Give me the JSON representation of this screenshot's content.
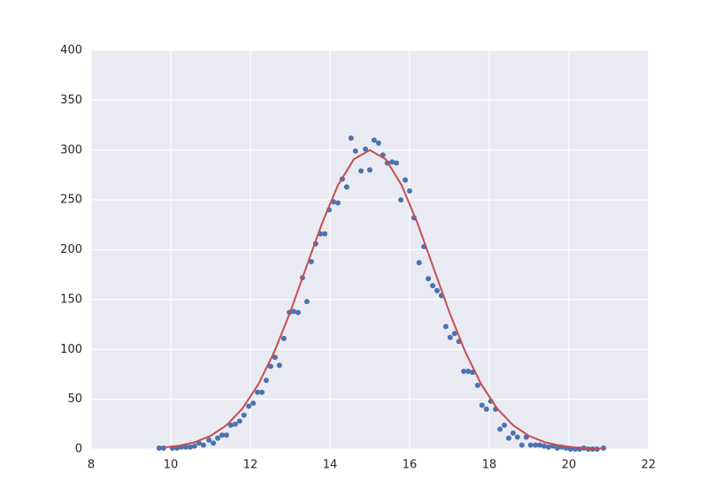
{
  "chart_data": {
    "type": "scatter",
    "xlim": [
      8,
      22
    ],
    "xticks": [
      8,
      10,
      12,
      14,
      16,
      18,
      20,
      22
    ],
    "ylim": [
      0,
      400
    ],
    "yticks": [
      0,
      50,
      100,
      150,
      200,
      250,
      300,
      350,
      400
    ],
    "grid": true,
    "series": [
      {
        "type": "scatter",
        "color": "#4c72b0",
        "x": [
          9.71,
          9.82,
          10.04,
          10.16,
          10.27,
          10.38,
          10.49,
          10.6,
          10.71,
          10.82,
          10.96,
          11.07,
          11.18,
          11.29,
          11.4,
          11.51,
          11.62,
          11.73,
          11.84,
          11.96,
          12.07,
          12.18,
          12.29,
          12.4,
          12.51,
          12.62,
          12.73,
          12.84,
          12.98,
          13.09,
          13.2,
          13.31,
          13.42,
          13.53,
          13.64,
          13.76,
          13.87,
          13.98,
          14.09,
          14.2,
          14.31,
          14.42,
          14.53,
          14.64,
          14.78,
          14.89,
          15.0,
          15.11,
          15.22,
          15.33,
          15.44,
          15.56,
          15.67,
          15.78,
          15.89,
          16.0,
          16.11,
          16.24,
          16.36,
          16.47,
          16.58,
          16.69,
          16.8,
          16.91,
          17.02,
          17.13,
          17.24,
          17.36,
          17.47,
          17.58,
          17.71,
          17.82,
          17.93,
          18.04,
          18.16,
          18.27,
          18.38,
          18.49,
          18.6,
          18.71,
          18.82,
          18.93,
          19.04,
          19.16,
          19.27,
          19.38,
          19.49,
          19.6,
          19.71,
          19.82,
          19.93,
          20.04,
          20.16,
          20.27,
          20.38,
          20.49,
          20.6,
          20.71,
          20.87
        ],
        "values": [
          1,
          1,
          1,
          1,
          2,
          2,
          2,
          3,
          6,
          4,
          9,
          6,
          11,
          14,
          14,
          24,
          25,
          28,
          34,
          43,
          46,
          57,
          57,
          69,
          83,
          92,
          84,
          111,
          137,
          138,
          137,
          172,
          148,
          188,
          206,
          216,
          216,
          240,
          248,
          247,
          271,
          263,
          312,
          299,
          279,
          301,
          280,
          310,
          307,
          295,
          287,
          288,
          287,
          250,
          270,
          259,
          232,
          187,
          203,
          171,
          164,
          159,
          154,
          123,
          112,
          116,
          108,
          78,
          78,
          77,
          64,
          44,
          40,
          48,
          40,
          20,
          24,
          11,
          16,
          12,
          4,
          12,
          4,
          4,
          4,
          3,
          2,
          3,
          1,
          2,
          1,
          0,
          0,
          0,
          1,
          0,
          0,
          0,
          1
        ]
      },
      {
        "type": "line",
        "color": "#c44e52",
        "x": [
          9.8,
          10.2,
          10.6,
          11.0,
          11.4,
          11.8,
          12.2,
          12.6,
          13.0,
          13.4,
          13.8,
          14.2,
          14.6,
          15.0,
          15.4,
          15.8,
          16.2,
          16.6,
          17.0,
          17.4,
          17.8,
          18.2,
          18.6,
          19.0,
          19.4,
          19.8,
          20.2,
          20.6,
          20.9
        ],
        "values": [
          1.5,
          3.3,
          6.8,
          13.2,
          23.9,
          40.6,
          64.9,
          97.4,
          137.3,
          182.0,
          226.4,
          264.8,
          290.8,
          300,
          290.8,
          264.8,
          226.4,
          182.0,
          137.3,
          97.4,
          64.9,
          40.6,
          23.9,
          13.2,
          6.8,
          3.3,
          1.5,
          0.7,
          0.3
        ]
      }
    ]
  }
}
